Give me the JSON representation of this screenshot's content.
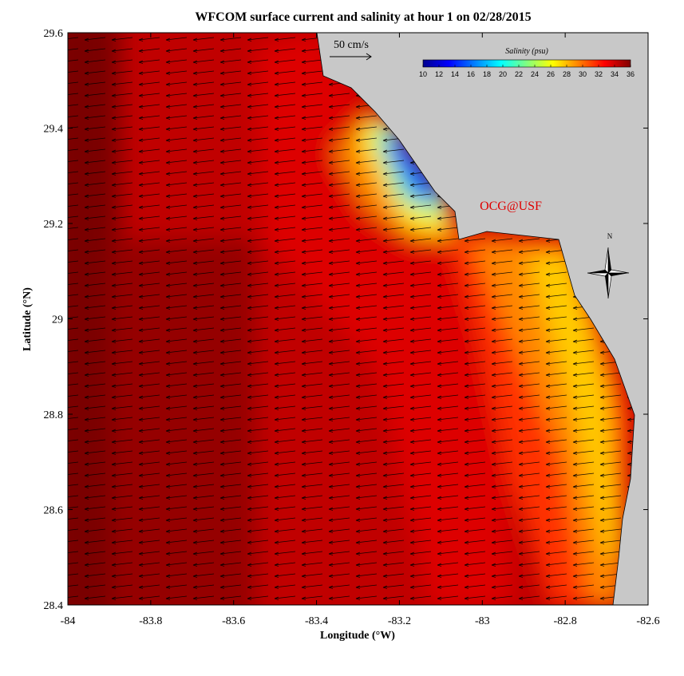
{
  "chart_data": {
    "type": "map",
    "title": "WFCOM surface current and salinity at hour 1 on 02/28/2015",
    "x_label": "Longitude (°W)",
    "y_label": "Latitude (°N)",
    "xlim": [
      -84,
      -82.6
    ],
    "xticks": [
      -84,
      -83.8,
      -83.6,
      -83.4,
      -83.2,
      -83,
      -82.8,
      -82.6
    ],
    "ylim": [
      28.4,
      29.6
    ],
    "yticks": [
      28.4,
      28.6,
      28.8,
      29,
      29.2,
      29.4,
      29.6
    ],
    "colorbar": {
      "title": "Salinity (psu)",
      "lim": [
        10,
        36
      ],
      "ticks": [
        10,
        12,
        14,
        16,
        18,
        20,
        22,
        24,
        26,
        28,
        30,
        32,
        34,
        36
      ],
      "colors": [
        "#00008f",
        "#0000ff",
        "#0080ff",
        "#00ffff",
        "#80ff80",
        "#ffff00",
        "#ff8000",
        "#ff0000",
        "#800000"
      ]
    },
    "scale_label": "50 cm/s",
    "credit": "OCG@USF",
    "north_label": "N"
  }
}
